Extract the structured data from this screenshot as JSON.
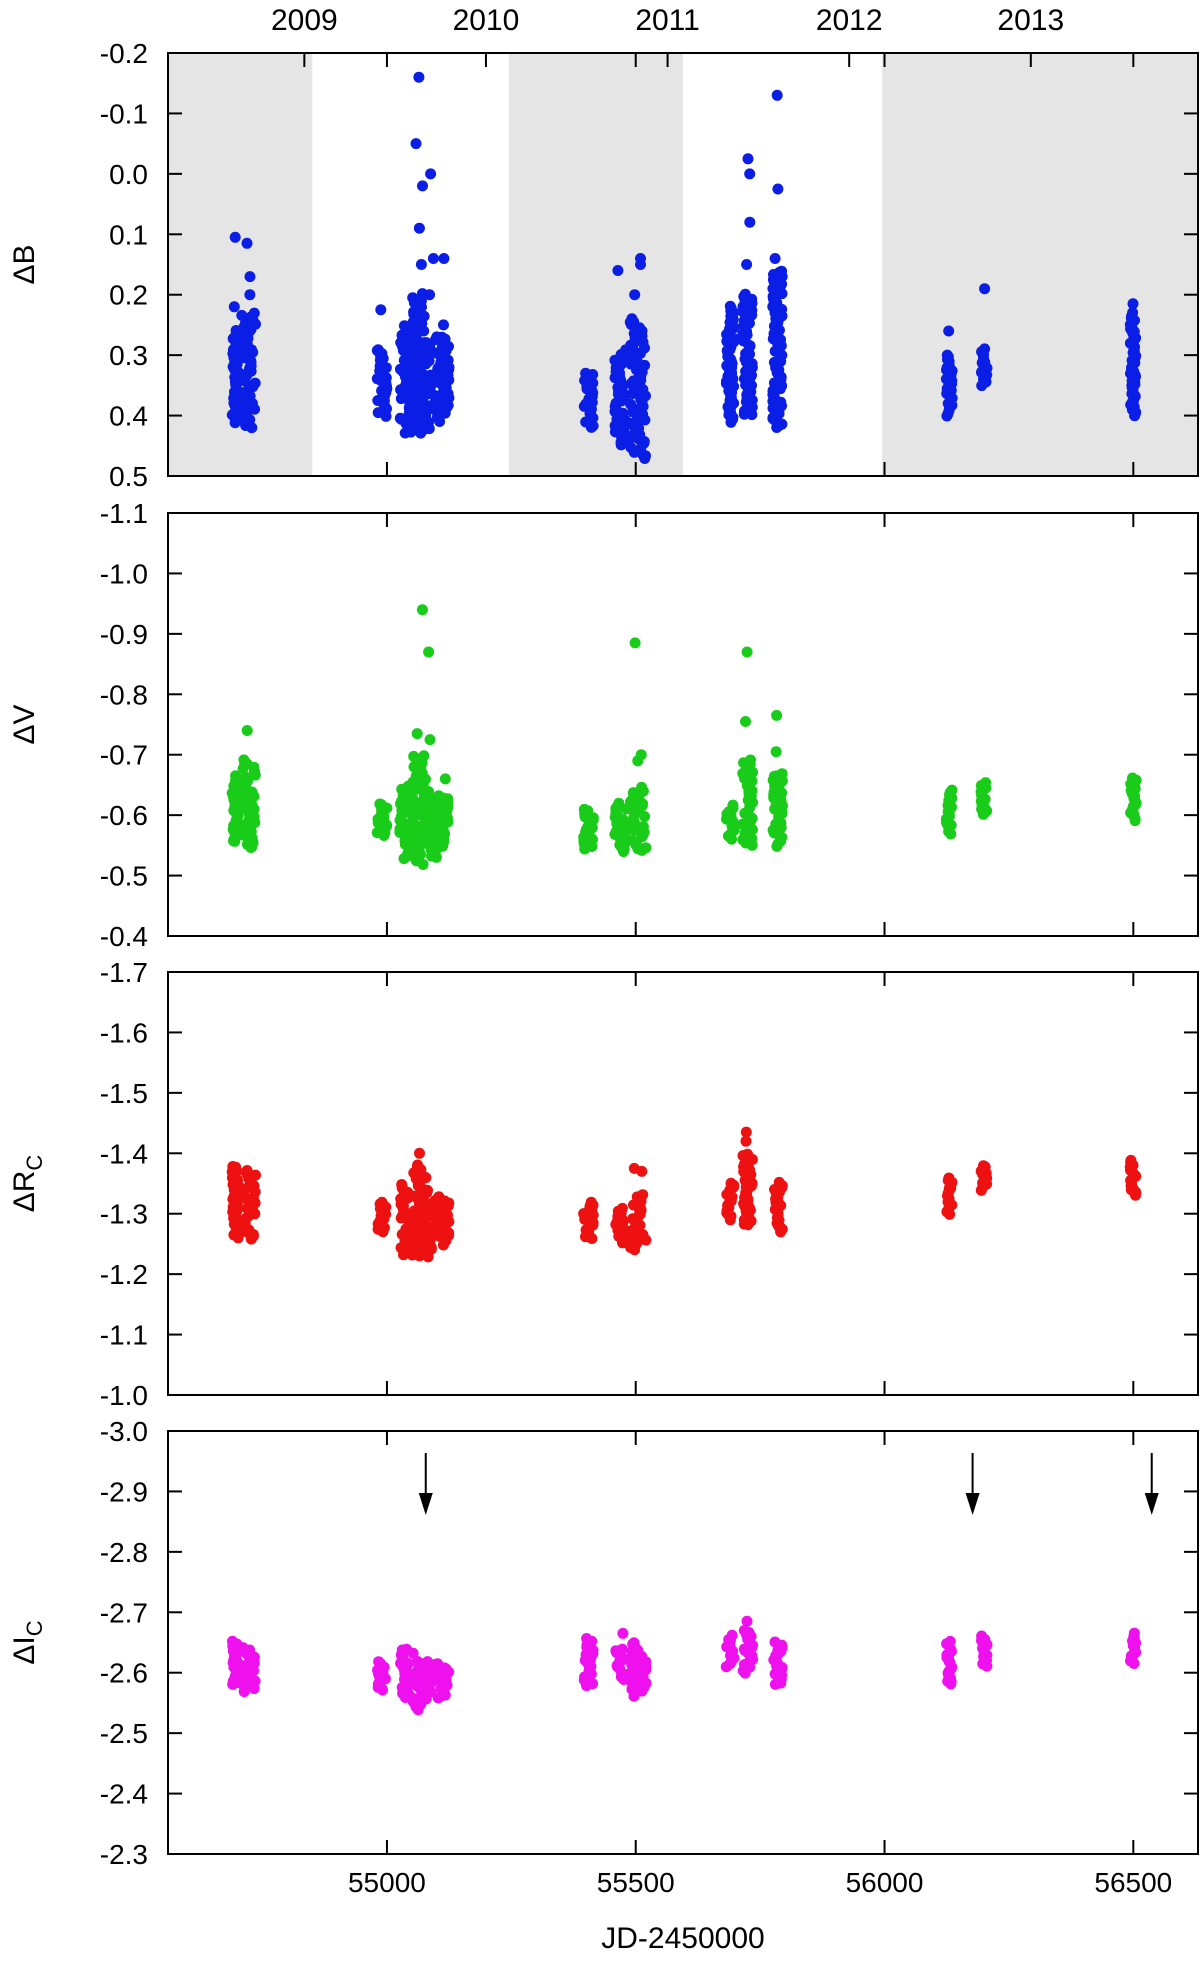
{
  "chart_data": {
    "type": "scatter",
    "xlabel": "JD-2450000",
    "xlim": [
      54560,
      56630
    ],
    "xticks": [
      55000,
      55500,
      56000,
      56500
    ],
    "year_labels": [
      {
        "label": "2009",
        "x": 54834
      },
      {
        "label": "2010",
        "x": 55199
      },
      {
        "label": "2011",
        "x": 55564
      },
      {
        "label": "2012",
        "x": 55929
      },
      {
        "label": "2013",
        "x": 56294
      }
    ],
    "shaded_seasons": [
      [
        54560,
        54850
      ],
      [
        55245,
        55595
      ],
      [
        55995,
        56630
      ]
    ],
    "panels": [
      {
        "ylabel": "ΔB",
        "ylabel_sub": "",
        "color": "#0a1ee6",
        "ylim": [
          -0.2,
          0.5
        ],
        "yticks": [
          -0.2,
          -0.1,
          0.0,
          0.1,
          0.2,
          0.3,
          0.4,
          0.5
        ],
        "clusters": [
          {
            "x": 54695,
            "xspread": 6,
            "ymin": 0.26,
            "ymax": 0.41,
            "outliers": [
              0.22,
              0.105
            ]
          },
          {
            "x": 54722,
            "xspread": 14,
            "ymin": 0.23,
            "ymax": 0.42,
            "outliers": [
              0.17,
              0.2,
              0.115
            ]
          },
          {
            "x": 54990,
            "xspread": 10,
            "ymin": 0.29,
            "ymax": 0.4,
            "outliers": [
              0.225
            ]
          },
          {
            "x": 55040,
            "xspread": 14,
            "ymin": 0.25,
            "ymax": 0.43,
            "outliers": []
          },
          {
            "x": 55065,
            "xspread": 14,
            "ymin": 0.2,
            "ymax": 0.43,
            "outliers": [
              -0.16,
              -0.05,
              0.02,
              0.09,
              0.15
            ]
          },
          {
            "x": 55090,
            "xspread": 16,
            "ymin": 0.27,
            "ymax": 0.42,
            "outliers": [
              0.0,
              0.14,
              0.2
            ]
          },
          {
            "x": 55115,
            "xspread": 10,
            "ymin": 0.27,
            "ymax": 0.4,
            "outliers": [
              0.14,
              0.25
            ]
          },
          {
            "x": 55405,
            "xspread": 10,
            "ymin": 0.33,
            "ymax": 0.42,
            "outliers": []
          },
          {
            "x": 55470,
            "xspread": 12,
            "ymin": 0.29,
            "ymax": 0.45,
            "outliers": [
              0.16
            ]
          },
          {
            "x": 55505,
            "xspread": 16,
            "ymin": 0.24,
            "ymax": 0.47,
            "outliers": [
              0.14,
              0.15,
              0.2
            ]
          },
          {
            "x": 55690,
            "xspread": 8,
            "ymin": 0.22,
            "ymax": 0.41,
            "outliers": []
          },
          {
            "x": 55725,
            "xspread": 10,
            "ymin": 0.2,
            "ymax": 0.4,
            "outliers": [
              -0.025,
              0.0,
              0.08,
              0.15
            ]
          },
          {
            "x": 55785,
            "xspread": 10,
            "ymin": 0.16,
            "ymax": 0.42,
            "outliers": [
              -0.13,
              0.025,
              0.14
            ]
          },
          {
            "x": 56130,
            "xspread": 6,
            "ymin": 0.3,
            "ymax": 0.4,
            "outliers": [
              0.26
            ]
          },
          {
            "x": 56200,
            "xspread": 6,
            "ymin": 0.29,
            "ymax": 0.35,
            "outliers": [
              0.19
            ]
          },
          {
            "x": 56500,
            "xspread": 6,
            "ymin": 0.23,
            "ymax": 0.4,
            "outliers": [
              0.215
            ]
          }
        ]
      },
      {
        "ylabel": "ΔV",
        "ylabel_sub": "",
        "color": "#19cc19",
        "ylim": [
          -1.1,
          -0.4
        ],
        "yticks": [
          -1.1,
          -1.0,
          -0.9,
          -0.8,
          -0.7,
          -0.6,
          -0.5,
          -0.4
        ],
        "clusters": [
          {
            "x": 54695,
            "xspread": 6,
            "ymin": -0.665,
            "ymax": -0.555,
            "outliers": []
          },
          {
            "x": 54722,
            "xspread": 14,
            "ymin": -0.69,
            "ymax": -0.545,
            "outliers": [
              -0.74
            ]
          },
          {
            "x": 54990,
            "xspread": 10,
            "ymin": -0.62,
            "ymax": -0.565,
            "outliers": []
          },
          {
            "x": 55040,
            "xspread": 14,
            "ymin": -0.65,
            "ymax": -0.53,
            "outliers": []
          },
          {
            "x": 55065,
            "xspread": 14,
            "ymin": -0.7,
            "ymax": -0.52,
            "outliers": [
              -0.94,
              -0.735
            ]
          },
          {
            "x": 55090,
            "xspread": 16,
            "ymin": -0.64,
            "ymax": -0.53,
            "outliers": [
              -0.87,
              -0.725
            ]
          },
          {
            "x": 55115,
            "xspread": 10,
            "ymin": -0.63,
            "ymax": -0.55,
            "outliers": [
              -0.66
            ]
          },
          {
            "x": 55405,
            "xspread": 10,
            "ymin": -0.61,
            "ymax": -0.545,
            "outliers": []
          },
          {
            "x": 55470,
            "xspread": 12,
            "ymin": -0.62,
            "ymax": -0.54,
            "outliers": []
          },
          {
            "x": 55505,
            "xspread": 16,
            "ymin": -0.645,
            "ymax": -0.54,
            "outliers": [
              -0.885,
              -0.7,
              -0.69
            ]
          },
          {
            "x": 55690,
            "xspread": 8,
            "ymin": -0.615,
            "ymax": -0.56,
            "outliers": []
          },
          {
            "x": 55725,
            "xspread": 10,
            "ymin": -0.69,
            "ymax": -0.55,
            "outliers": [
              -0.87,
              -0.755
            ]
          },
          {
            "x": 55785,
            "xspread": 10,
            "ymin": -0.67,
            "ymax": -0.55,
            "outliers": [
              -0.765,
              -0.705
            ]
          },
          {
            "x": 56130,
            "xspread": 6,
            "ymin": -0.64,
            "ymax": -0.57,
            "outliers": []
          },
          {
            "x": 56200,
            "xspread": 6,
            "ymin": -0.655,
            "ymax": -0.6,
            "outliers": []
          },
          {
            "x": 56500,
            "xspread": 6,
            "ymin": -0.66,
            "ymax": -0.59,
            "outliers": []
          }
        ]
      },
      {
        "ylabel": "ΔR",
        "ylabel_sub": "C",
        "color": "#ee1111",
        "ylim": [
          -1.7,
          -1.0
        ],
        "yticks": [
          -1.7,
          -1.6,
          -1.5,
          -1.4,
          -1.3,
          -1.2,
          -1.1,
          -1.0
        ],
        "clusters": [
          {
            "x": 54695,
            "xspread": 6,
            "ymin": -1.38,
            "ymax": -1.26,
            "outliers": []
          },
          {
            "x": 54722,
            "xspread": 14,
            "ymin": -1.37,
            "ymax": -1.26,
            "outliers": []
          },
          {
            "x": 54990,
            "xspread": 10,
            "ymin": -1.32,
            "ymax": -1.27,
            "outliers": []
          },
          {
            "x": 55040,
            "xspread": 14,
            "ymin": -1.35,
            "ymax": -1.23,
            "outliers": []
          },
          {
            "x": 55065,
            "xspread": 14,
            "ymin": -1.38,
            "ymax": -1.23,
            "outliers": [
              -1.4
            ]
          },
          {
            "x": 55090,
            "xspread": 16,
            "ymin": -1.34,
            "ymax": -1.23,
            "outliers": []
          },
          {
            "x": 55115,
            "xspread": 10,
            "ymin": -1.32,
            "ymax": -1.25,
            "outliers": []
          },
          {
            "x": 55405,
            "xspread": 10,
            "ymin": -1.32,
            "ymax": -1.26,
            "outliers": []
          },
          {
            "x": 55470,
            "xspread": 12,
            "ymin": -1.31,
            "ymax": -1.25,
            "outliers": []
          },
          {
            "x": 55505,
            "xspread": 16,
            "ymin": -1.33,
            "ymax": -1.24,
            "outliers": [
              -1.37,
              -1.375
            ]
          },
          {
            "x": 55690,
            "xspread": 8,
            "ymin": -1.35,
            "ymax": -1.29,
            "outliers": []
          },
          {
            "x": 55725,
            "xspread": 10,
            "ymin": -1.4,
            "ymax": -1.28,
            "outliers": [
              -1.435,
              -1.42
            ]
          },
          {
            "x": 55785,
            "xspread": 10,
            "ymin": -1.35,
            "ymax": -1.27,
            "outliers": []
          },
          {
            "x": 56130,
            "xspread": 6,
            "ymin": -1.36,
            "ymax": -1.3,
            "outliers": []
          },
          {
            "x": 56200,
            "xspread": 6,
            "ymin": -1.38,
            "ymax": -1.34,
            "outliers": []
          },
          {
            "x": 56500,
            "xspread": 6,
            "ymin": -1.39,
            "ymax": -1.33,
            "outliers": []
          }
        ]
      },
      {
        "ylabel": "ΔI",
        "ylabel_sub": "C",
        "color": "#ee11ee",
        "ylim": [
          -3.0,
          -2.3
        ],
        "yticks": [
          -3.0,
          -2.9,
          -2.8,
          -2.7,
          -2.6,
          -2.5,
          -2.4,
          -2.3
        ],
        "arrows": [
          55078,
          56177,
          56537
        ],
        "clusters": [
          {
            "x": 54695,
            "xspread": 6,
            "ymin": -2.65,
            "ymax": -2.58,
            "outliers": []
          },
          {
            "x": 54722,
            "xspread": 14,
            "ymin": -2.64,
            "ymax": -2.57,
            "outliers": []
          },
          {
            "x": 54990,
            "xspread": 10,
            "ymin": -2.62,
            "ymax": -2.57,
            "outliers": []
          },
          {
            "x": 55040,
            "xspread": 14,
            "ymin": -2.64,
            "ymax": -2.56,
            "outliers": []
          },
          {
            "x": 55065,
            "xspread": 14,
            "ymin": -2.62,
            "ymax": -2.54,
            "outliers": []
          },
          {
            "x": 55090,
            "xspread": 16,
            "ymin": -2.62,
            "ymax": -2.56,
            "outliers": []
          },
          {
            "x": 55115,
            "xspread": 10,
            "ymin": -2.61,
            "ymax": -2.56,
            "outliers": []
          },
          {
            "x": 55405,
            "xspread": 10,
            "ymin": -2.655,
            "ymax": -2.58,
            "outliers": []
          },
          {
            "x": 55470,
            "xspread": 12,
            "ymin": -2.64,
            "ymax": -2.59,
            "outliers": [
              -2.665
            ]
          },
          {
            "x": 55505,
            "xspread": 16,
            "ymin": -2.65,
            "ymax": -2.56,
            "outliers": []
          },
          {
            "x": 55690,
            "xspread": 8,
            "ymin": -2.66,
            "ymax": -2.61,
            "outliers": []
          },
          {
            "x": 55725,
            "xspread": 10,
            "ymin": -2.67,
            "ymax": -2.6,
            "outliers": [
              -2.685
            ]
          },
          {
            "x": 55785,
            "xspread": 10,
            "ymin": -2.65,
            "ymax": -2.58,
            "outliers": []
          },
          {
            "x": 56130,
            "xspread": 6,
            "ymin": -2.65,
            "ymax": -2.58,
            "outliers": []
          },
          {
            "x": 56200,
            "xspread": 6,
            "ymin": -2.66,
            "ymax": -2.61,
            "outliers": []
          },
          {
            "x": 56500,
            "xspread": 6,
            "ymin": -2.665,
            "ymax": -2.615,
            "outliers": []
          }
        ]
      }
    ]
  }
}
